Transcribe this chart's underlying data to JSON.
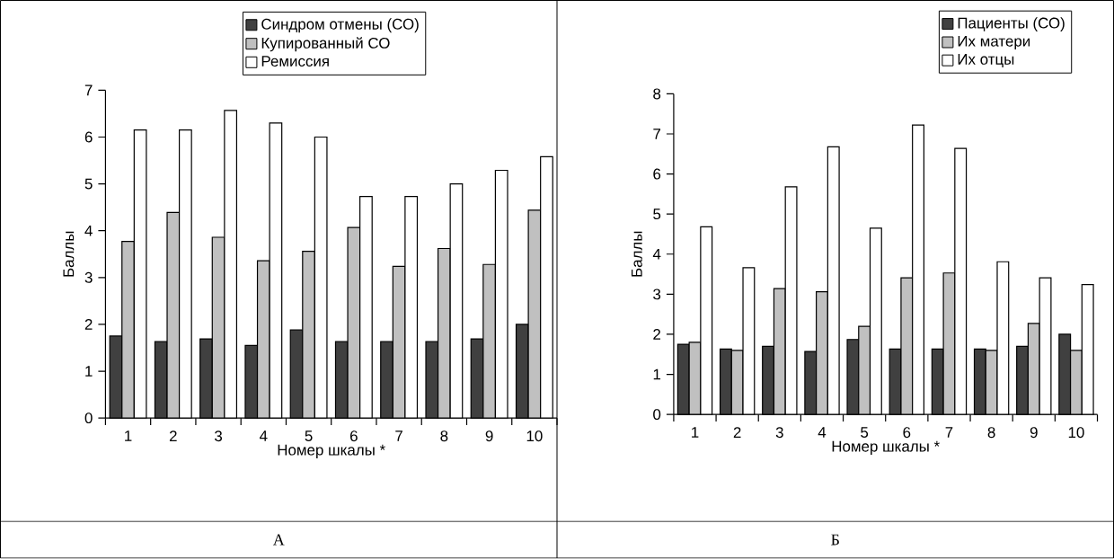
{
  "chart_data": [
    {
      "type": "bar",
      "categories": [
        "1",
        "2",
        "3",
        "4",
        "5",
        "6",
        "7",
        "8",
        "9",
        "10"
      ],
      "xlabel": "Номер шкалы *",
      "ylabel": "Баллы",
      "ylim": [
        0,
        7
      ],
      "yticks": [
        0,
        1,
        2,
        3,
        4,
        5,
        6,
        7
      ],
      "legend": "top right",
      "annotations": [
        "А"
      ],
      "series": [
        {
          "name": "Синдром отмены (СО)",
          "color": "#404040",
          "values": [
            1.75,
            1.63,
            1.69,
            1.55,
            1.88,
            1.63,
            1.63,
            1.63,
            1.69,
            2.0
          ]
        },
        {
          "name": "Купированный СО",
          "color": "#c0c0c0",
          "values": [
            3.77,
            4.39,
            3.86,
            3.36,
            3.56,
            4.07,
            3.24,
            3.62,
            3.28,
            4.44
          ]
        },
        {
          "name": "Ремиссия",
          "color": "#ffffff",
          "values": [
            6.15,
            6.15,
            6.57,
            6.3,
            6.0,
            4.73,
            4.73,
            5.0,
            5.29,
            5.58
          ]
        }
      ]
    },
    {
      "type": "bar",
      "categories": [
        "1",
        "2",
        "3",
        "4",
        "5",
        "6",
        "7",
        "8",
        "9",
        "10"
      ],
      "xlabel": "Номер шкалы *",
      "ylabel": "Баллы",
      "ylim": [
        0,
        8
      ],
      "yticks": [
        0,
        1,
        2,
        3,
        4,
        5,
        6,
        7,
        8
      ],
      "legend": "top right",
      "annotations": [
        "Б"
      ],
      "series": [
        {
          "name": "Пациенты (СО)",
          "color": "#404040",
          "values": [
            1.75,
            1.63,
            1.7,
            1.57,
            1.87,
            1.63,
            1.63,
            1.63,
            1.7,
            2.0
          ]
        },
        {
          "name": "Их матери",
          "color": "#c0c0c0",
          "values": [
            1.8,
            1.6,
            3.14,
            3.06,
            2.2,
            3.41,
            3.53,
            1.6,
            2.27,
            1.6
          ]
        },
        {
          "name": "Их отцы",
          "color": "#ffffff",
          "values": [
            4.68,
            3.66,
            5.68,
            6.68,
            4.65,
            7.22,
            6.64,
            3.81,
            3.41,
            3.24
          ]
        }
      ]
    }
  ]
}
